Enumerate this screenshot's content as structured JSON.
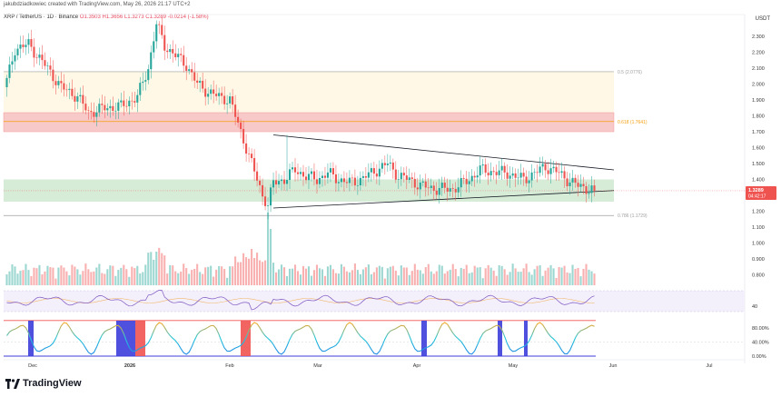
{
  "header": {
    "credit": "jakubdziadkowiec created with TradingView.com, May 26, 2026 21:17 UTC+2",
    "symbol": "XRP / TetherUS · 1D · Binance",
    "ohlc": "O1.3503  H1.3656  L1.3273  C1.3289  -0.0214 (-1.58%)",
    "currency": "USDT"
  },
  "footer": {
    "brand": "TradingView"
  },
  "colors": {
    "up": "#26a69a",
    "down": "#ef5350",
    "fib05": "#9e9e9e",
    "fib618": "#f59e0b",
    "fib786": "#9e9e9e",
    "price_tag": "#ef5350",
    "stoch_line": "#ef5350",
    "stoch_band": "#3d3ddb"
  },
  "chart_data": {
    "type": "candlestick",
    "title": "",
    "x_tick_labels": [
      "Dec",
      "2026",
      "Feb",
      "Mar",
      "Apr",
      "May",
      "Jun",
      "Jul"
    ],
    "price_axis": {
      "ticks": [
        0.8,
        0.9,
        1.0,
        1.1,
        1.2,
        1.3,
        1.4,
        1.5,
        1.6,
        1.7,
        1.8,
        1.9,
        2.0,
        2.1,
        2.2,
        2.3
      ],
      "tick_labels": [
        "0.800",
        "0.900",
        "1.000",
        "1.100",
        "1.200",
        "1.300",
        "1.400",
        "1.500",
        "1.600",
        "1.700",
        "1.800",
        "1.900",
        "2.000",
        "2.100",
        "2.200",
        "2.300"
      ],
      "range": [
        0.75,
        2.38
      ]
    },
    "last_price": {
      "value": 1.3289,
      "label": "1.3289",
      "countdown": "04:42:17"
    },
    "fib_levels": [
      {
        "ratio": 0.5,
        "value": 2.0776,
        "label": "0.5 (2.0776)"
      },
      {
        "ratio": 0.618,
        "value": 1.7641,
        "label": "0.618 (1.7641)"
      },
      {
        "ratio": 0.786,
        "value": 1.1729,
        "label": "0.786 (1.1729)"
      }
    ],
    "zones": [
      {
        "name": "resistance",
        "low": 1.7,
        "high": 1.82,
        "color": "#f8c9c9"
      },
      {
        "name": "support",
        "low": 1.26,
        "high": 1.4,
        "color": "#c8e6c9"
      },
      {
        "name": "golden-pocket",
        "low": 1.82,
        "high": 2.0776,
        "color": "#fff8e6"
      }
    ],
    "triangle": {
      "upper": [
        [
          0,
          1.68
        ],
        [
          1,
          1.46
        ]
      ],
      "lower": [
        [
          0,
          1.22
        ],
        [
          1,
          1.33
        ]
      ]
    },
    "candles": [],
    "rsi": {
      "ticks": [
        40
      ],
      "tick_labels": [
        "40"
      ]
    },
    "stoch": {
      "ticks": [
        0,
        40,
        80
      ],
      "tick_labels": [
        "0.00%",
        "40.00%",
        "80.00%"
      ]
    }
  }
}
